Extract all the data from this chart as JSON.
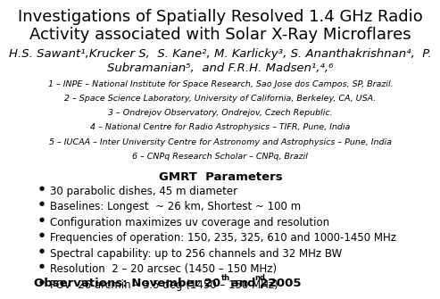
{
  "title_line1": "Investigations of Spatially Resolved 1.4 GHz Radio",
  "title_line2": "Activity associated with Solar X-Ray Microflares",
  "authors_line1": "H.S. Sawant¹,Krucker S,  S. Kane², M. Karlicky³, S. Ananthakrishnan⁴,  P.",
  "authors_line2": "Subramanian⁵,  and F.R.H. Madsen¹,⁴,⁶",
  "affiliations": [
    "1 – INPE – National Institute for Space Research, Sao Jose dos Campos, SP, Brazil.",
    "2 – Space Science Laboratory, University of California, Berkeley, CA, USA.",
    "3 – Ondrejov Observatory, Ondrejov, Czech Republic.",
    "4 – National Centre for Radio Astrophysics – TIFR, Pune, India",
    "5 – IUCAA – Inter University Centre for Astronomy and Astrophysics – Pune, India",
    "6 – CNPq Research Scholar – CNPq, Brazil"
  ],
  "section_title": "GMRT  Parameters",
  "bullet_points": [
    "30 parabolic dishes, 45 m diameter",
    "Baselines: Longest  ~ 26 km, Shortest ~ 100 m",
    "Configuration maximizes uv coverage and resolution",
    "Frequencies of operation: 150, 235, 325, 610 and 1000-1450 MHz",
    "Spectral capability: up to 256 channels and 32 MHz BW",
    "Resolution  2 – 20 arcsec (1450 – 150 MHz)",
    "FOV  26 arcmin – 3.5 deg (1450 – 150 MHz)"
  ],
  "background_color": "#ffffff",
  "text_color": "#000000",
  "title_fontsize": 13.0,
  "authors_fontsize": 9.5,
  "affil_fontsize": 6.8,
  "section_fontsize": 9.5,
  "bullet_fontsize": 8.5,
  "footer_fontsize": 9.5
}
